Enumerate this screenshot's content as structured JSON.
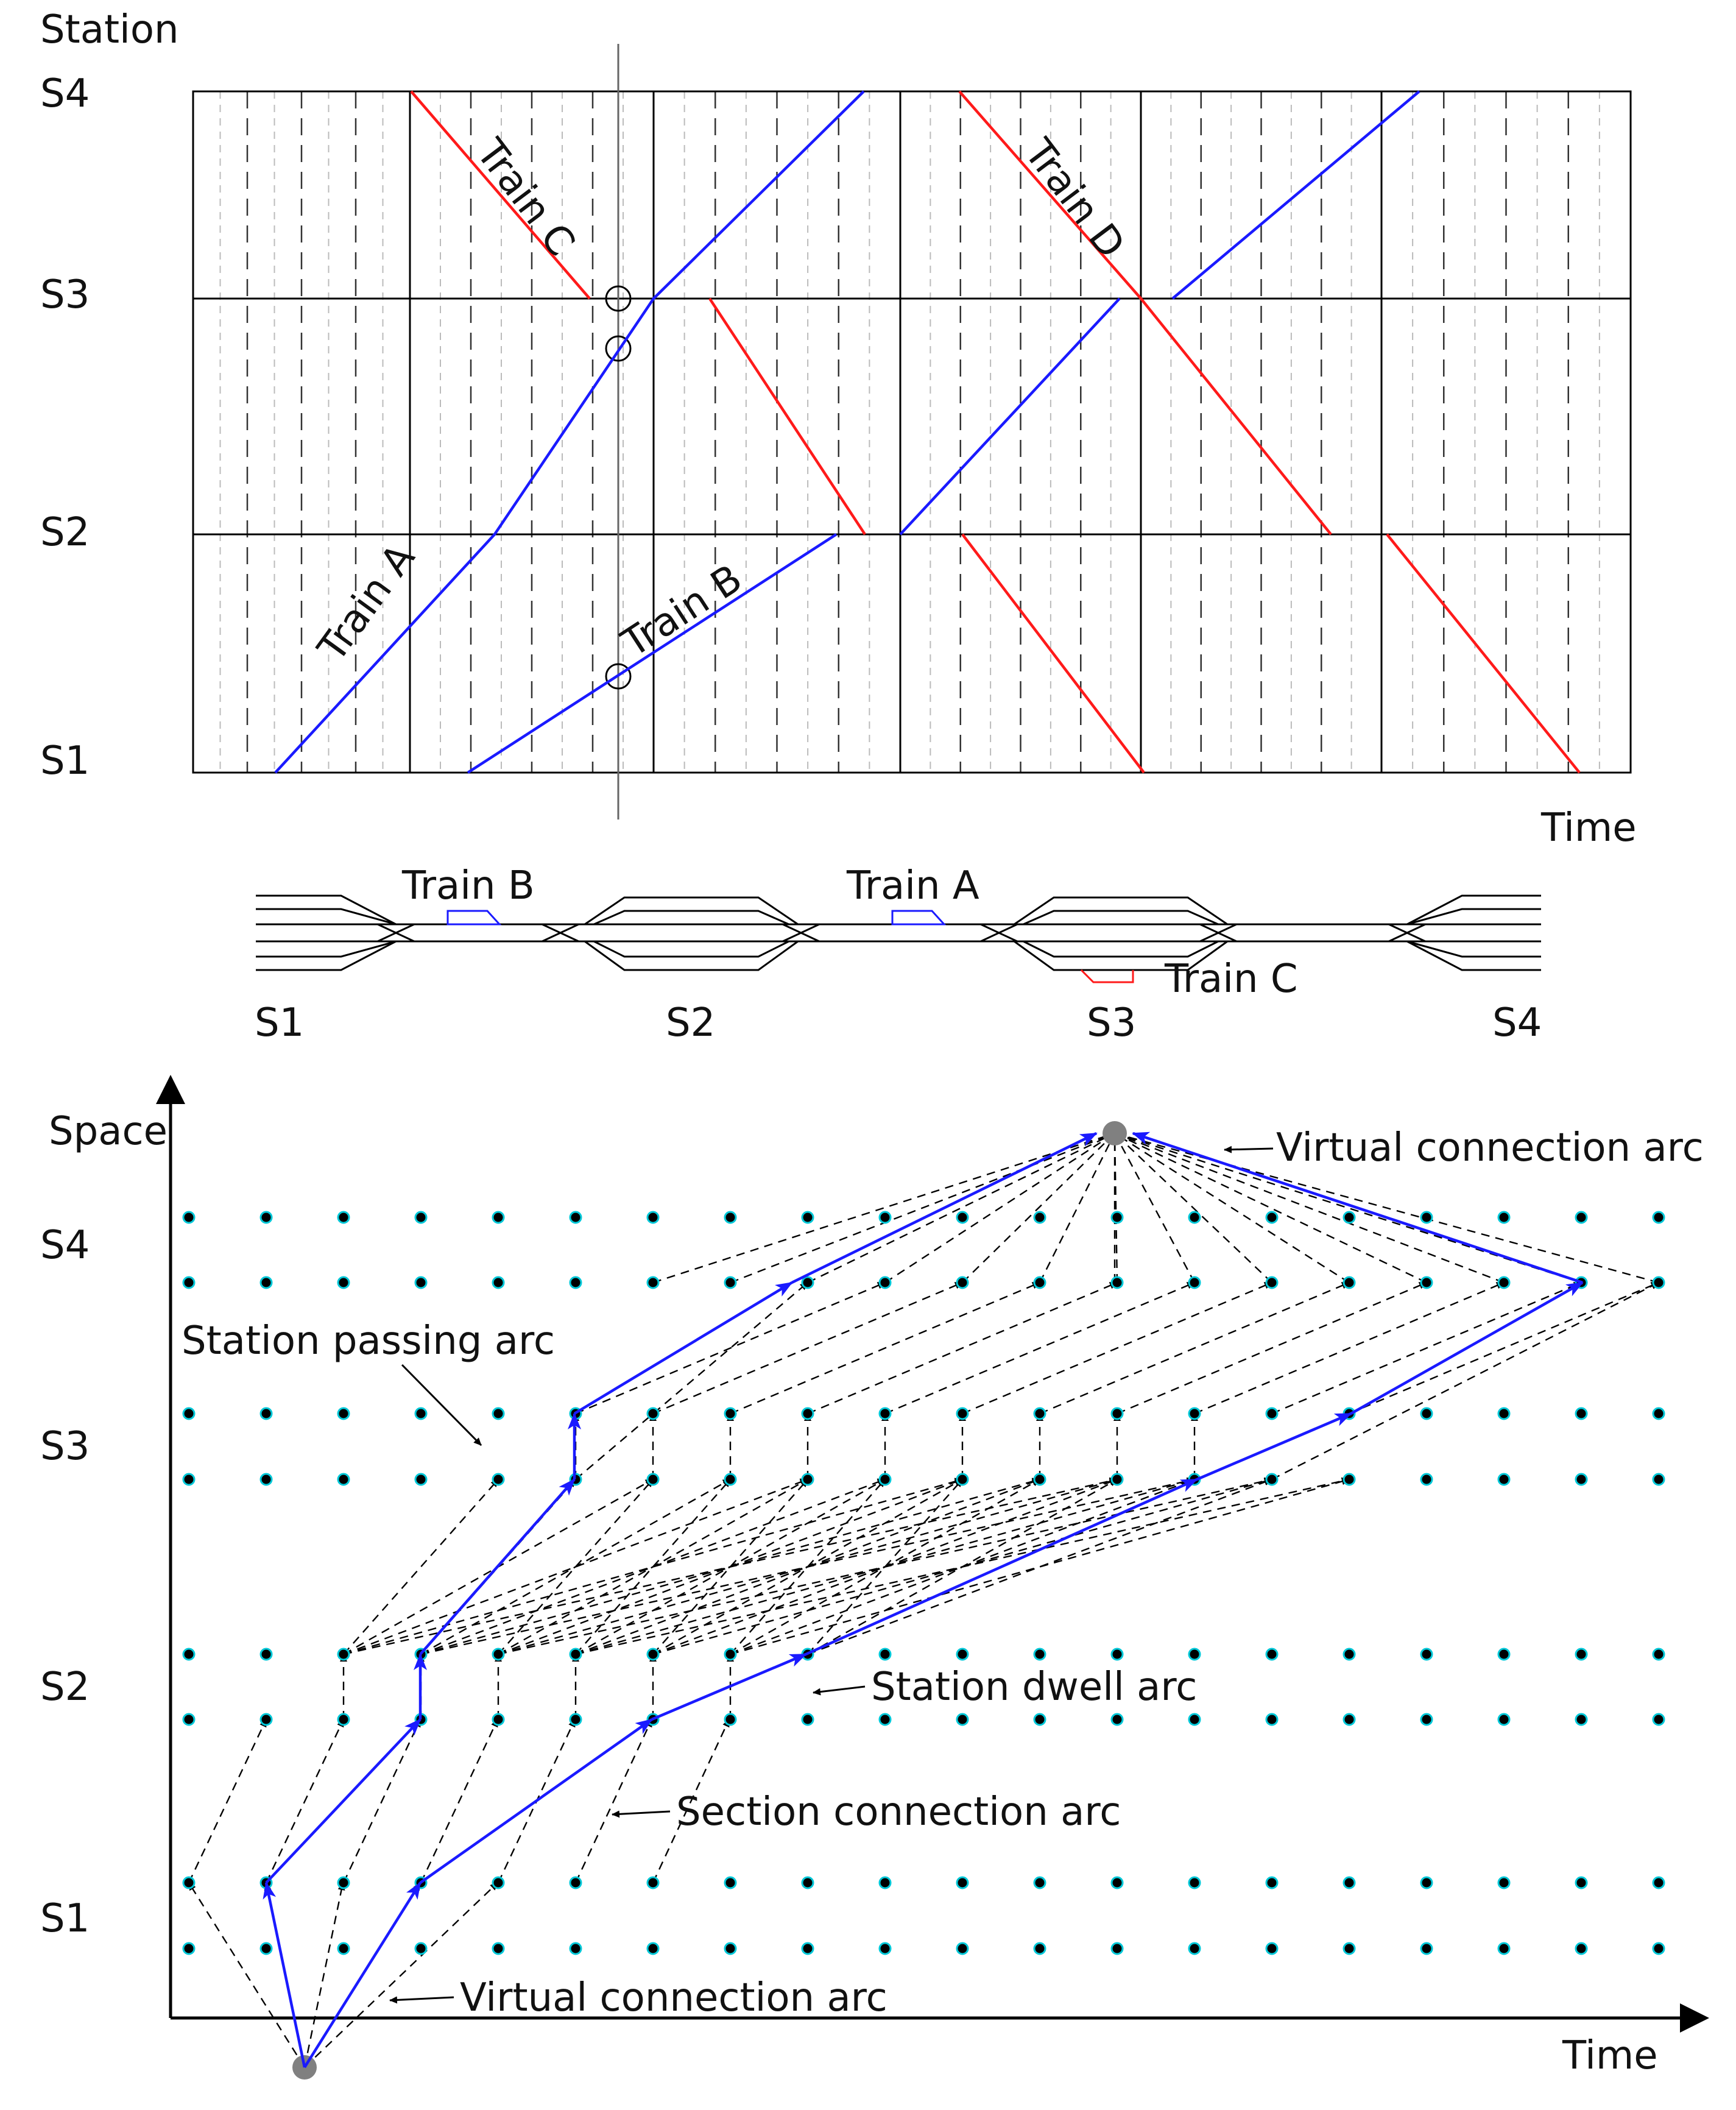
{
  "timetable": {
    "y_axis_label": "Station",
    "x_axis_label": "Time",
    "stations": [
      "S1",
      "S2",
      "S3",
      "S4"
    ],
    "train_labels": {
      "a": "Train A",
      "b": "Train B",
      "c": "Train C",
      "d": "Train D"
    },
    "colors": {
      "up": "#1a1aff",
      "down": "#ff1a1a",
      "grid": "#000000"
    }
  },
  "track_layout": {
    "stations": [
      "S1",
      "S2",
      "S3",
      "S4"
    ],
    "train_labels": {
      "b": "Train B",
      "a": "Train A",
      "c": "Train C"
    }
  },
  "network": {
    "y_axis_label": "Space",
    "x_axis_label": "Time",
    "stations": [
      "S4",
      "S3",
      "S2",
      "S1"
    ],
    "annotations": {
      "virtual_top": "Virtual connection arc",
      "station_passing": "Station passing arc",
      "station_dwell": "Station dwell arc",
      "section_connection": "Section connection arc",
      "virtual_bottom": "Virtual connection arc"
    },
    "colors": {
      "path": "#1a1aff",
      "node": "#000000",
      "node_ring": "#00c8d8",
      "virtual": "#808080"
    }
  }
}
